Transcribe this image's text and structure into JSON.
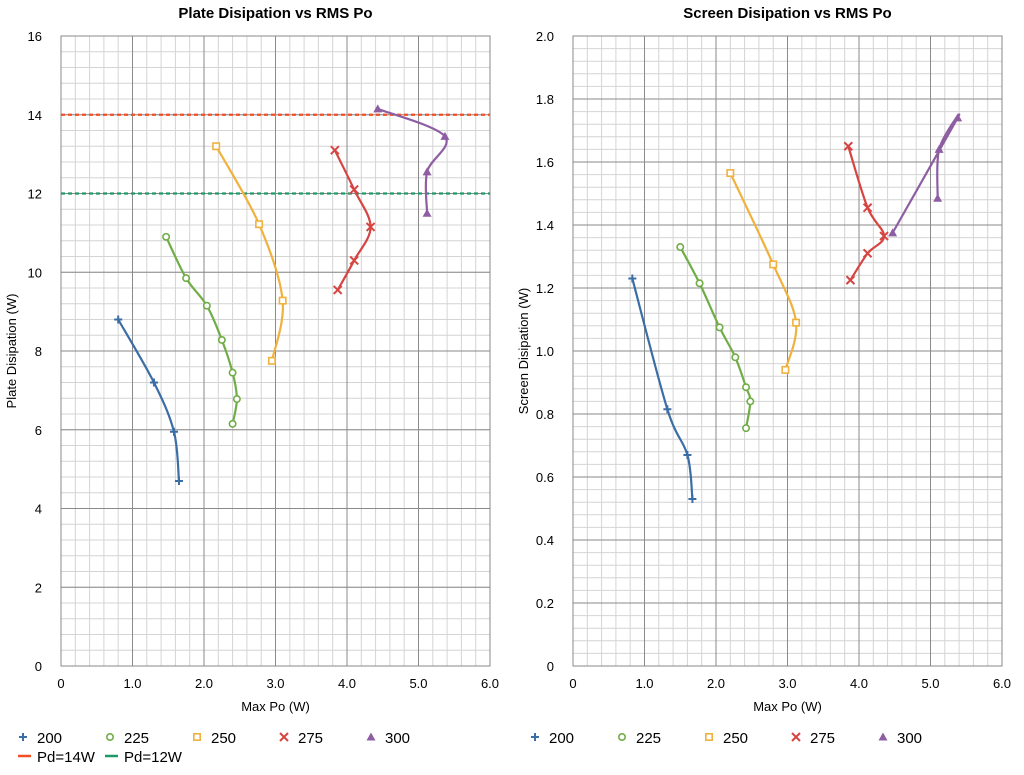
{
  "chart_data": [
    {
      "type": "scatter",
      "title": "Plate Disipation vs RMS Po",
      "xlabel": "Max Po (W)",
      "ylabel": "Plate Disipation (W)",
      "xlim": [
        0,
        6
      ],
      "ylim": [
        0,
        16
      ],
      "xticks": [
        "0",
        "1.0",
        "2.0",
        "3.0",
        "4.0",
        "5.0",
        "6.0"
      ],
      "yticks": [
        "0",
        "2",
        "4",
        "6",
        "8",
        "10",
        "12",
        "14",
        "16"
      ],
      "grid": true,
      "legend_position": "bottom",
      "series": [
        {
          "name": "200",
          "color": "#3b6ea5",
          "marker": "plus",
          "points": [
            [
              0.8,
              8.8
            ],
            [
              1.3,
              7.2
            ],
            [
              1.58,
              5.95
            ],
            [
              1.65,
              4.7
            ]
          ]
        },
        {
          "name": "225",
          "color": "#70ad47",
          "marker": "circle",
          "points": [
            [
              1.47,
              10.9
            ],
            [
              1.75,
              9.85
            ],
            [
              2.04,
              9.15
            ],
            [
              2.25,
              8.28
            ],
            [
              2.4,
              7.45
            ],
            [
              2.46,
              6.78
            ],
            [
              2.4,
              6.15
            ]
          ]
        },
        {
          "name": "250",
          "color": "#f0b13d",
          "marker": "square",
          "points": [
            [
              2.17,
              13.2
            ],
            [
              2.77,
              11.22
            ],
            [
              3.1,
              9.28
            ],
            [
              2.95,
              7.75
            ]
          ]
        },
        {
          "name": "275",
          "color": "#d64541",
          "marker": "x",
          "points": [
            [
              3.83,
              13.1
            ],
            [
              4.1,
              12.1
            ],
            [
              4.33,
              11.15
            ],
            [
              4.1,
              10.3
            ],
            [
              3.87,
              9.55
            ]
          ]
        },
        {
          "name": "300",
          "color": "#8e5ea2",
          "marker": "triangle",
          "points": [
            [
              4.43,
              14.15
            ],
            [
              5.37,
              13.45
            ],
            [
              5.12,
              12.55
            ],
            [
              5.12,
              11.5
            ]
          ]
        }
      ],
      "reference_lines": [
        {
          "name": "Pd=14W",
          "y": 14,
          "color": "#f04e23"
        },
        {
          "name": "Pd=12W",
          "y": 12,
          "color": "#1e9a6a"
        }
      ]
    },
    {
      "type": "scatter",
      "title": "Screen Disipation vs RMS Po",
      "xlabel": "Max Po (W)",
      "ylabel": "Screen Disipation (W)",
      "xlim": [
        0,
        6
      ],
      "ylim": [
        0,
        2
      ],
      "xticks": [
        "0",
        "1.0",
        "2.0",
        "3.0",
        "4.0",
        "5.0",
        "6.0"
      ],
      "yticks": [
        "0",
        "0.2",
        "0.4",
        "0.6",
        "0.8",
        "1.0",
        "1.2",
        "1.4",
        "1.6",
        "1.8",
        "2.0"
      ],
      "grid": true,
      "legend_position": "bottom",
      "series": [
        {
          "name": "200",
          "color": "#3b6ea5",
          "marker": "plus",
          "points": [
            [
              0.83,
              1.23
            ],
            [
              1.32,
              0.815
            ],
            [
              1.6,
              0.67
            ],
            [
              1.67,
              0.53
            ]
          ]
        },
        {
          "name": "225",
          "color": "#70ad47",
          "marker": "circle",
          "points": [
            [
              1.5,
              1.33
            ],
            [
              1.77,
              1.215
            ],
            [
              2.05,
              1.075
            ],
            [
              2.27,
              0.98
            ],
            [
              2.42,
              0.885
            ],
            [
              2.48,
              0.84
            ],
            [
              2.42,
              0.755
            ]
          ]
        },
        {
          "name": "250",
          "color": "#f0b13d",
          "marker": "square",
          "points": [
            [
              2.2,
              1.565
            ],
            [
              2.8,
              1.275
            ],
            [
              3.12,
              1.09
            ],
            [
              2.97,
              0.94
            ]
          ]
        },
        {
          "name": "275",
          "color": "#d64541",
          "marker": "x",
          "points": [
            [
              3.85,
              1.65
            ],
            [
              4.12,
              1.455
            ],
            [
              4.35,
              1.365
            ],
            [
              4.12,
              1.31
            ],
            [
              3.88,
              1.225
            ]
          ]
        },
        {
          "name": "300",
          "color": "#8e5ea2",
          "marker": "triangle",
          "points": [
            [
              5.1,
              1.485
            ],
            [
              5.12,
              1.64
            ],
            [
              5.38,
              1.74
            ],
            [
              4.47,
              1.375
            ]
          ]
        }
      ]
    }
  ]
}
